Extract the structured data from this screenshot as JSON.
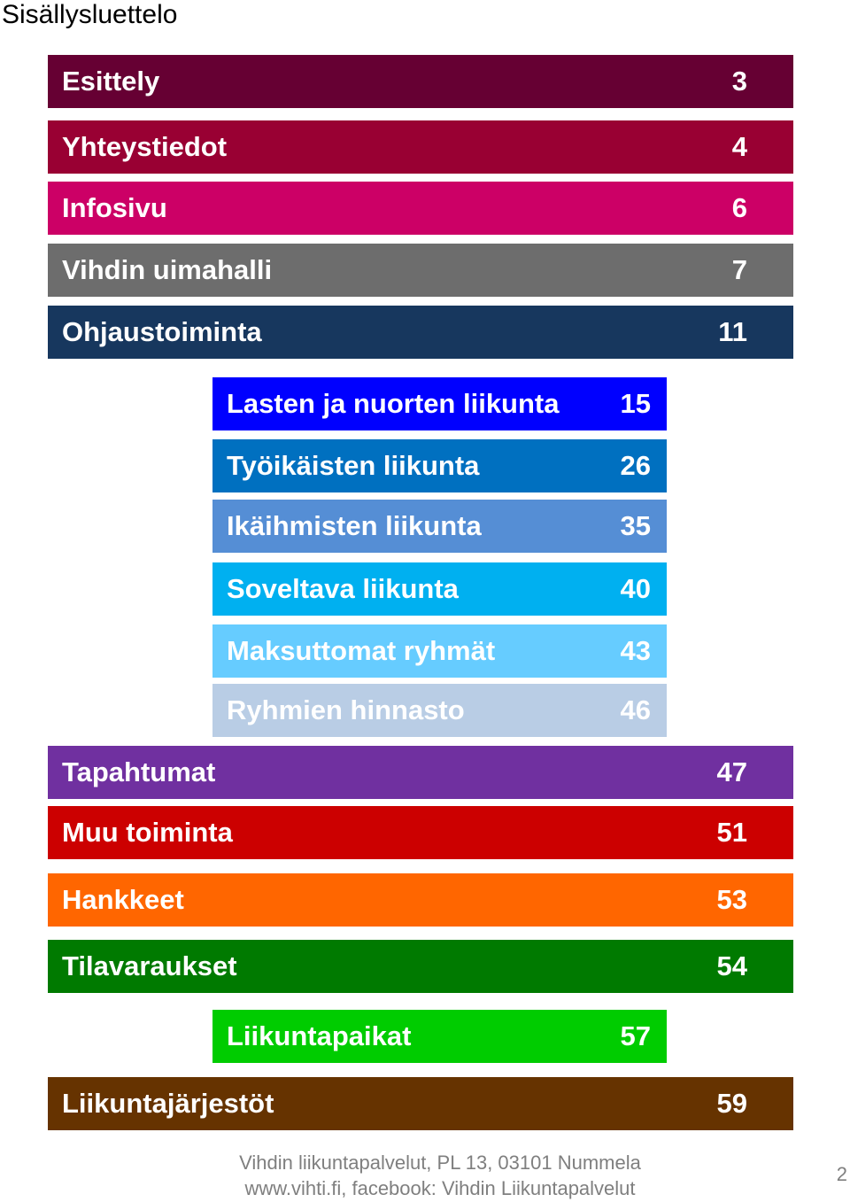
{
  "title": "Sisällysluettelo",
  "entries": [
    {
      "label": "Esittely",
      "page": "3",
      "level": "main",
      "bg": "#660033",
      "fg": "#ffffff"
    },
    {
      "label": "Yhteystiedot",
      "page": "4",
      "level": "main",
      "bg": "#990033",
      "fg": "#ffffff"
    },
    {
      "label": "Infosivu",
      "page": "6",
      "level": "main",
      "bg": "#cc0066",
      "fg": "#ffffff"
    },
    {
      "label": "Vihdin uimahalli",
      "page": "7",
      "level": "main",
      "bg": "#6d6d6d",
      "fg": "#ffffff"
    },
    {
      "label": "Ohjaustoiminta",
      "page": "11",
      "level": "main",
      "bg": "#17375e",
      "fg": "#ffffff"
    },
    {
      "label": "Lasten ja nuorten liikunta",
      "page": "15",
      "level": "sub",
      "bg": "#0000ff",
      "fg": "#ffffff"
    },
    {
      "label": "Työikäisten liikunta",
      "page": "26",
      "level": "sub",
      "bg": "#0070c0",
      "fg": "#ffffff"
    },
    {
      "label": "Ikäihmisten liikunta",
      "page": "35",
      "level": "sub",
      "bg": "#558ed5",
      "fg": "#ffffff"
    },
    {
      "label": "Soveltava liikunta",
      "page": "40",
      "level": "sub",
      "bg": "#00b0f0",
      "fg": "#ffffff"
    },
    {
      "label": "Maksuttomat ryhmät",
      "page": "43",
      "level": "sub",
      "bg": "#66ccff",
      "fg": "#ffffff"
    },
    {
      "label": "Ryhmien hinnasto",
      "page": "46",
      "level": "sub",
      "bg": "#b9cde5",
      "fg": "#ffffff"
    },
    {
      "label": "Tapahtumat",
      "page": "47",
      "level": "main",
      "bg": "#7030a0",
      "fg": "#ffffff"
    },
    {
      "label": "Muu toiminta",
      "page": "51",
      "level": "main",
      "bg": "#cc0000",
      "fg": "#ffffff"
    },
    {
      "label": "Hankkeet",
      "page": "53",
      "level": "main",
      "bg": "#ff6600",
      "fg": "#ffffff"
    },
    {
      "label": "Tilavaraukset",
      "page": "54",
      "level": "main",
      "bg": "#007a00",
      "fg": "#ffffff"
    },
    {
      "label": "Liikuntapaikat",
      "page": "57",
      "level": "sub",
      "bg": "#00cc00",
      "fg": "#ffffff"
    },
    {
      "label": "Liikuntajärjestöt",
      "page": "59",
      "level": "main",
      "bg": "#663300",
      "fg": "#ffffff"
    }
  ],
  "footer": {
    "line1": "Vihdin liikuntapalvelut, PL 13, 03101 Nummela",
    "line2": "www.vihti.fi, facebook: Vihdin Liikuntapalvelut"
  },
  "slide_number": "2"
}
